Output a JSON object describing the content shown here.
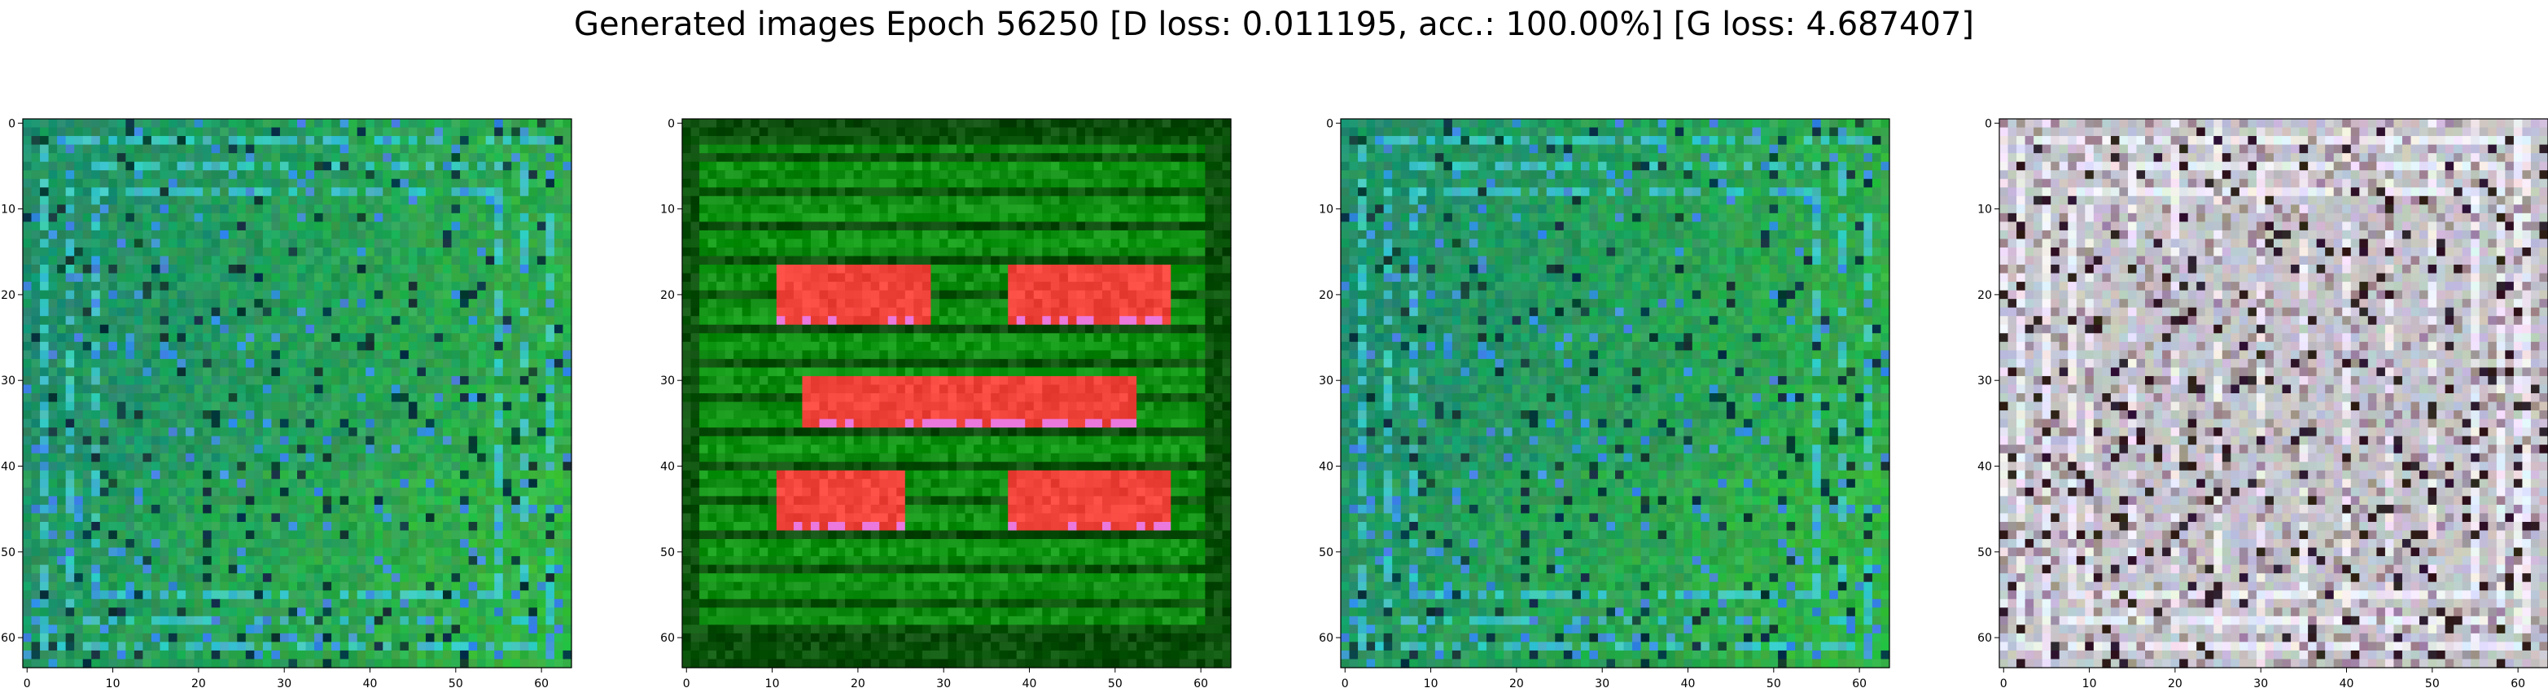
{
  "figure": {
    "title": "Generated images Epoch 56250 [D loss: 0.011195, acc.: 100.00%] [G loss: 4.687407]"
  },
  "chart_data": [
    {
      "type": "heatmap",
      "subplot": 1,
      "xlim": [
        0,
        63
      ],
      "ylim": [
        63,
        0
      ],
      "xticks": [
        0,
        10,
        20,
        30,
        40,
        50,
        60
      ],
      "yticks": [
        0,
        10,
        20,
        30,
        40,
        50,
        60
      ],
      "dominant_colors": [
        "#1f8f6a",
        "#2fae49",
        "#3cc0c0",
        "#0b3b3b"
      ],
      "description_pattern": "teal-green noisy grid pattern with border frames"
    },
    {
      "type": "heatmap",
      "subplot": 2,
      "xlim": [
        0,
        63
      ],
      "ylim": [
        63,
        0
      ],
      "xticks": [
        0,
        10,
        20,
        30,
        40,
        50,
        60
      ],
      "yticks": [
        0,
        10,
        20,
        30,
        40,
        50,
        60
      ],
      "dominant_colors": [
        "#0f8a12",
        "#1aa21a",
        "#f0433a",
        "#0a4a0a"
      ],
      "red_blocks_pixel_ranges": [
        {
          "x": [
            11,
            28
          ],
          "y": [
            17,
            23
          ]
        },
        {
          "x": [
            38,
            56
          ],
          "y": [
            17,
            23
          ]
        },
        {
          "x": [
            14,
            52
          ],
          "y": [
            30,
            35
          ]
        },
        {
          "x": [
            11,
            25
          ],
          "y": [
            41,
            47
          ]
        },
        {
          "x": [
            38,
            56
          ],
          "y": [
            41,
            47
          ]
        }
      ]
    },
    {
      "type": "heatmap",
      "subplot": 3,
      "xlim": [
        0,
        63
      ],
      "ylim": [
        63,
        0
      ],
      "xticks": [
        0,
        10,
        20,
        30,
        40,
        50,
        60
      ],
      "yticks": [
        0,
        10,
        20,
        30,
        40,
        50,
        60
      ],
      "dominant_colors": [
        "#1f8f6a",
        "#2fae49",
        "#3cc0c0",
        "#0b3b3b"
      ]
    },
    {
      "type": "heatmap",
      "subplot": 4,
      "xlim": [
        0,
        63
      ],
      "ylim": [
        63,
        0
      ],
      "xticks": [
        0,
        10,
        20,
        30,
        40,
        50,
        60
      ],
      "yticks": [
        0,
        10,
        20,
        30,
        40,
        50,
        60
      ],
      "dominant_colors": [
        "#c9c4cc",
        "#eeeaf4",
        "#8f8a96",
        "#1b1b24"
      ]
    }
  ]
}
